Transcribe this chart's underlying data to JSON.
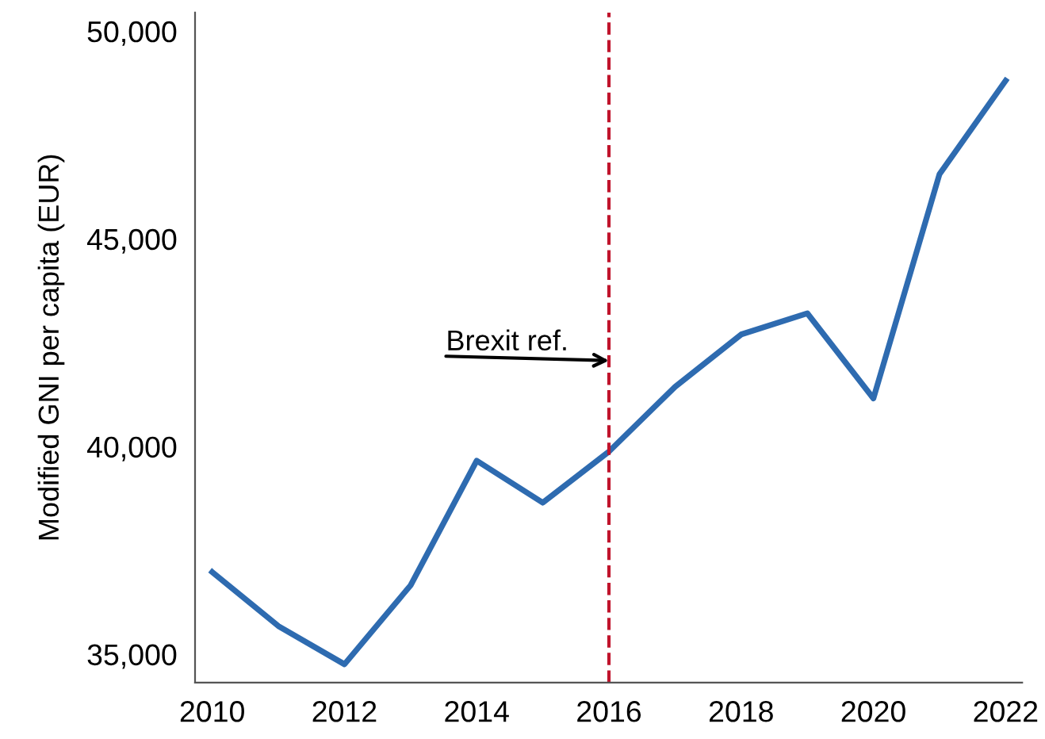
{
  "chart_data": {
    "type": "line",
    "ylabel": "Modified GNI per capita (EUR)",
    "x": [
      2010,
      2011,
      2012,
      2013,
      2014,
      2015,
      2016,
      2017,
      2018,
      2019,
      2020,
      2021,
      2022
    ],
    "series": [
      {
        "color": "#2e6bb0",
        "values": [
          36980,
          35680,
          34760,
          36660,
          39660,
          38650,
          39880,
          41440,
          42700,
          43210,
          41160,
          46560,
          48810
        ]
      }
    ],
    "xlim": [
      2009.74,
      2022.25
    ],
    "xticks": [
      2010,
      2012,
      2014,
      2016,
      2018,
      2020,
      2022
    ],
    "ylim": [
      34320,
      50450
    ],
    "yticks": [
      {
        "value": 35000,
        "label": "35,000"
      },
      {
        "value": 40000,
        "label": "40,000"
      },
      {
        "value": 45000,
        "label": "45,000"
      },
      {
        "value": 50000,
        "label": "50,000"
      }
    ],
    "ref_lines": [
      {
        "axis": "x",
        "value": 2016,
        "color": "#c0142c",
        "line_style": "dashed"
      }
    ],
    "annotations": [
      {
        "text": "Brexit ref.",
        "x": 2016,
        "y": 42070
      }
    ],
    "grid": false,
    "marker": "none",
    "line_style": "solid"
  }
}
